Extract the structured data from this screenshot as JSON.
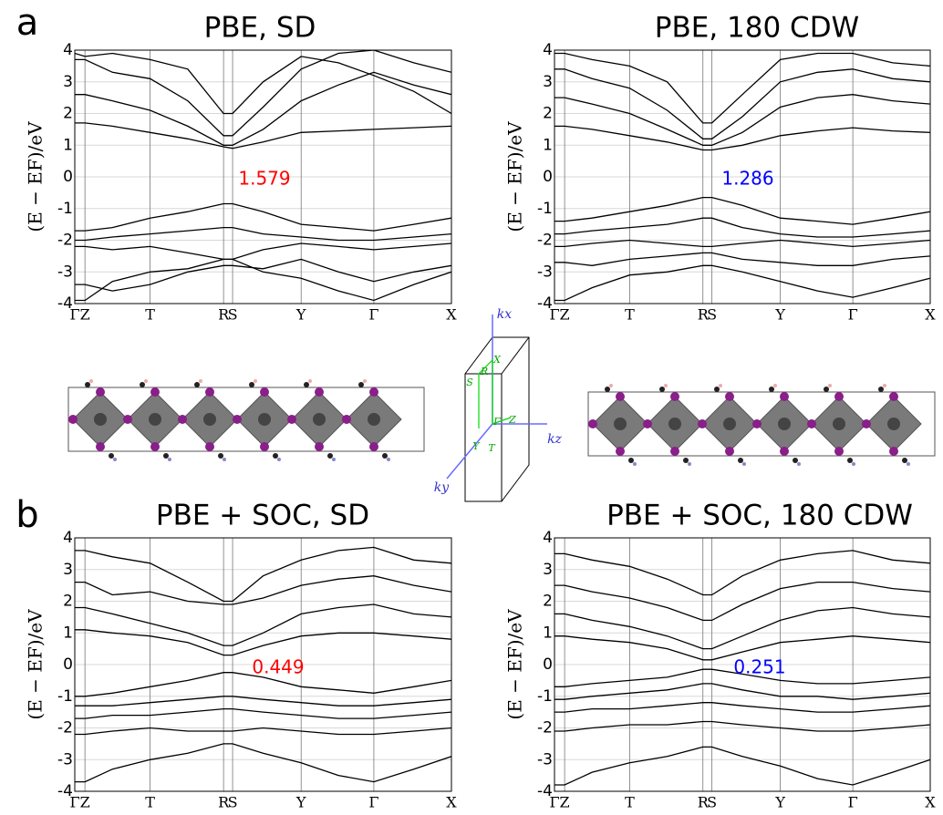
{
  "chart_data": [
    {
      "type": "line",
      "panel_label": "a",
      "title": "PBE, SD",
      "ylabel": "(E − EF)/eV",
      "color": "#000000",
      "grid": true,
      "annotation": {
        "text": "1.579",
        "color": "#ff0000"
      },
      "x": [
        0,
        0.027,
        0.1,
        0.2,
        0.3,
        0.395,
        0.419,
        0.5,
        0.601,
        0.7,
        0.794,
        0.9,
        1
      ],
      "xlim": [
        0,
        1
      ],
      "xticks": [
        {
          "value": 0,
          "label": "Γ"
        },
        {
          "value": 0.027,
          "label": "Z"
        },
        {
          "value": 0.2,
          "label": "T"
        },
        {
          "value": 0.395,
          "label": "R"
        },
        {
          "value": 0.419,
          "label": "S"
        },
        {
          "value": 0.601,
          "label": "Y"
        },
        {
          "value": 0.794,
          "label": "Γ"
        },
        {
          "value": 1,
          "label": "X"
        }
      ],
      "ylim": [
        -4,
        4
      ],
      "yticks": [
        -4,
        -3,
        -2,
        -1,
        0,
        1,
        2,
        3,
        4
      ],
      "series": [
        {
          "values": [
            1.7,
            1.7,
            1.6,
            1.4,
            1.2,
            0.95,
            0.9,
            1.1,
            1.4,
            1.45,
            1.5,
            1.55,
            1.6
          ]
        },
        {
          "values": [
            2.6,
            2.6,
            2.4,
            2.1,
            1.6,
            1.0,
            1.0,
            1.5,
            2.4,
            2.9,
            3.3,
            2.9,
            2.6
          ]
        },
        {
          "values": [
            3.7,
            3.7,
            3.3,
            3.1,
            2.4,
            1.3,
            1.3,
            2.2,
            3.4,
            3.9,
            4.0,
            3.6,
            3.3
          ]
        },
        {
          "values": [
            3.9,
            3.8,
            3.9,
            3.7,
            3.4,
            2.0,
            2.0,
            3.0,
            3.8,
            3.6,
            3.2,
            2.7,
            2.0
          ]
        },
        {
          "values": [
            -1.7,
            -1.7,
            -1.6,
            -1.3,
            -1.1,
            -0.85,
            -0.85,
            -1.1,
            -1.5,
            -1.6,
            -1.7,
            -1.5,
            -1.3
          ]
        },
        {
          "values": [
            -2.0,
            -2.0,
            -1.9,
            -1.8,
            -1.7,
            -1.6,
            -1.6,
            -1.8,
            -1.9,
            -2.0,
            -2.0,
            -1.9,
            -1.8
          ]
        },
        {
          "values": [
            -2.2,
            -2.2,
            -2.3,
            -2.2,
            -2.4,
            -2.6,
            -2.6,
            -2.3,
            -2.1,
            -2.2,
            -2.3,
            -2.2,
            -2.1
          ]
        },
        {
          "values": [
            -3.4,
            -3.4,
            -3.6,
            -3.4,
            -3.0,
            -2.8,
            -2.8,
            -2.9,
            -2.6,
            -3.0,
            -3.3,
            -3.0,
            -2.8
          ]
        },
        {
          "values": [
            -3.9,
            -3.9,
            -3.3,
            -3.0,
            -2.9,
            -2.6,
            -2.6,
            -3.0,
            -3.2,
            -3.6,
            -3.9,
            -3.4,
            -3.0
          ]
        }
      ]
    },
    {
      "type": "line",
      "title": "PBE, 180 CDW",
      "ylabel": "(E − EF)/eV",
      "color": "#000000",
      "grid": true,
      "annotation": {
        "text": "1.286",
        "color": "#0000ff"
      },
      "x": [
        0,
        0.027,
        0.1,
        0.2,
        0.3,
        0.395,
        0.419,
        0.5,
        0.601,
        0.7,
        0.794,
        0.9,
        1
      ],
      "xlim": [
        0,
        1
      ],
      "xticks": [
        {
          "value": 0,
          "label": "Γ"
        },
        {
          "value": 0.027,
          "label": "Z"
        },
        {
          "value": 0.2,
          "label": "T"
        },
        {
          "value": 0.395,
          "label": "R"
        },
        {
          "value": 0.419,
          "label": "S"
        },
        {
          "value": 0.601,
          "label": "Y"
        },
        {
          "value": 0.794,
          "label": "Γ"
        },
        {
          "value": 1,
          "label": "X"
        }
      ],
      "ylim": [
        -4,
        4
      ],
      "yticks": [
        -4,
        -3,
        -2,
        -1,
        0,
        1,
        2,
        3,
        4
      ],
      "series": [
        {
          "values": [
            1.6,
            1.6,
            1.5,
            1.3,
            1.1,
            0.85,
            0.85,
            1.0,
            1.3,
            1.45,
            1.55,
            1.45,
            1.4
          ]
        },
        {
          "values": [
            2.5,
            2.5,
            2.3,
            2.0,
            1.5,
            1.0,
            1.0,
            1.4,
            2.2,
            2.5,
            2.6,
            2.4,
            2.3
          ]
        },
        {
          "values": [
            3.4,
            3.4,
            3.1,
            2.8,
            2.1,
            1.2,
            1.2,
            1.9,
            3.0,
            3.3,
            3.4,
            3.1,
            3.0
          ]
        },
        {
          "values": [
            3.9,
            3.9,
            3.7,
            3.5,
            3.0,
            1.7,
            1.7,
            2.6,
            3.7,
            3.9,
            3.9,
            3.6,
            3.5
          ]
        },
        {
          "values": [
            -1.4,
            -1.4,
            -1.3,
            -1.1,
            -0.9,
            -0.65,
            -0.65,
            -0.9,
            -1.3,
            -1.4,
            -1.5,
            -1.3,
            -1.1
          ]
        },
        {
          "values": [
            -1.8,
            -1.8,
            -1.7,
            -1.6,
            -1.5,
            -1.3,
            -1.3,
            -1.6,
            -1.8,
            -1.9,
            -1.9,
            -1.8,
            -1.7
          ]
        },
        {
          "values": [
            -2.2,
            -2.2,
            -2.1,
            -2.0,
            -2.1,
            -2.2,
            -2.2,
            -2.1,
            -2.0,
            -2.1,
            -2.2,
            -2.1,
            -2.0
          ]
        },
        {
          "values": [
            -2.7,
            -2.7,
            -2.8,
            -2.6,
            -2.5,
            -2.4,
            -2.4,
            -2.6,
            -2.7,
            -2.8,
            -2.8,
            -2.6,
            -2.5
          ]
        },
        {
          "values": [
            -3.9,
            -3.9,
            -3.5,
            -3.1,
            -3.0,
            -2.8,
            -2.8,
            -3.0,
            -3.3,
            -3.6,
            -3.8,
            -3.5,
            -3.2
          ]
        }
      ]
    },
    {
      "type": "line",
      "panel_label": "b",
      "title": "PBE + SOC, SD",
      "ylabel": "(E − EF)/eV",
      "color": "#000000",
      "grid": true,
      "annotation": {
        "text": "0.449",
        "color": "#ff0000"
      },
      "x": [
        0,
        0.027,
        0.1,
        0.2,
        0.3,
        0.395,
        0.419,
        0.5,
        0.601,
        0.7,
        0.794,
        0.9,
        1
      ],
      "xlim": [
        0,
        1
      ],
      "xticks": [
        {
          "value": 0,
          "label": "Γ"
        },
        {
          "value": 0.027,
          "label": "Z"
        },
        {
          "value": 0.2,
          "label": "T"
        },
        {
          "value": 0.395,
          "label": "R"
        },
        {
          "value": 0.419,
          "label": "S"
        },
        {
          "value": 0.601,
          "label": "Y"
        },
        {
          "value": 0.794,
          "label": "Γ"
        },
        {
          "value": 1,
          "label": "X"
        }
      ],
      "ylim": [
        -4,
        4
      ],
      "yticks": [
        -4,
        -3,
        -2,
        -1,
        0,
        1,
        2,
        3,
        4
      ],
      "series": [
        {
          "values": [
            1.1,
            1.1,
            1.0,
            0.9,
            0.7,
            0.3,
            0.3,
            0.6,
            0.9,
            1.0,
            1.0,
            0.9,
            0.8
          ]
        },
        {
          "values": [
            1.8,
            1.8,
            1.6,
            1.3,
            1.0,
            0.6,
            0.6,
            1.0,
            1.6,
            1.8,
            1.9,
            1.6,
            1.5
          ]
        },
        {
          "values": [
            2.6,
            2.6,
            2.2,
            2.3,
            2.0,
            1.9,
            1.9,
            2.1,
            2.5,
            2.7,
            2.8,
            2.5,
            2.3
          ]
        },
        {
          "values": [
            3.6,
            3.6,
            3.4,
            3.2,
            2.6,
            2.0,
            2.0,
            2.8,
            3.3,
            3.6,
            3.7,
            3.3,
            3.2
          ]
        },
        {
          "values": [
            -1.0,
            -1.0,
            -0.9,
            -0.7,
            -0.5,
            -0.25,
            -0.25,
            -0.4,
            -0.7,
            -0.8,
            -0.9,
            -0.7,
            -0.5
          ]
        },
        {
          "values": [
            -1.3,
            -1.3,
            -1.3,
            -1.2,
            -1.1,
            -1.0,
            -1.0,
            -1.1,
            -1.2,
            -1.3,
            -1.3,
            -1.2,
            -1.1
          ]
        },
        {
          "values": [
            -1.7,
            -1.7,
            -1.6,
            -1.6,
            -1.5,
            -1.4,
            -1.4,
            -1.5,
            -1.6,
            -1.7,
            -1.7,
            -1.6,
            -1.5
          ]
        },
        {
          "values": [
            -2.2,
            -2.2,
            -2.1,
            -2.0,
            -2.1,
            -2.1,
            -2.1,
            -2.0,
            -2.1,
            -2.2,
            -2.2,
            -2.1,
            -2.0
          ]
        },
        {
          "values": [
            -3.7,
            -3.7,
            -3.3,
            -3.0,
            -2.8,
            -2.5,
            -2.5,
            -2.8,
            -3.1,
            -3.5,
            -3.7,
            -3.3,
            -2.9
          ]
        }
      ]
    },
    {
      "type": "line",
      "title": "PBE + SOC, 180 CDW",
      "ylabel": "(E − EF)/eV",
      "color": "#000000",
      "grid": true,
      "annotation": {
        "text": "0.251",
        "color": "#0000ff"
      },
      "x": [
        0,
        0.027,
        0.1,
        0.2,
        0.3,
        0.395,
        0.419,
        0.5,
        0.601,
        0.7,
        0.794,
        0.9,
        1
      ],
      "xlim": [
        0,
        1
      ],
      "xticks": [
        {
          "value": 0,
          "label": "Γ"
        },
        {
          "value": 0.027,
          "label": "Z"
        },
        {
          "value": 0.2,
          "label": "T"
        },
        {
          "value": 0.395,
          "label": "R"
        },
        {
          "value": 0.419,
          "label": "S"
        },
        {
          "value": 0.601,
          "label": "Y"
        },
        {
          "value": 0.794,
          "label": "Γ"
        },
        {
          "value": 1,
          "label": "X"
        }
      ],
      "ylim": [
        -4,
        4
      ],
      "yticks": [
        -4,
        -3,
        -2,
        -1,
        0,
        1,
        2,
        3,
        4
      ],
      "series": [
        {
          "values": [
            0.9,
            0.9,
            0.8,
            0.7,
            0.5,
            0.15,
            0.15,
            0.4,
            0.7,
            0.8,
            0.9,
            0.8,
            0.7
          ]
        },
        {
          "values": [
            1.6,
            1.6,
            1.4,
            1.2,
            0.9,
            0.5,
            0.5,
            0.9,
            1.4,
            1.7,
            1.8,
            1.6,
            1.5
          ]
        },
        {
          "values": [
            2.5,
            2.5,
            2.3,
            2.1,
            1.8,
            1.4,
            1.4,
            1.9,
            2.4,
            2.6,
            2.6,
            2.4,
            2.3
          ]
        },
        {
          "values": [
            3.5,
            3.5,
            3.3,
            3.1,
            2.7,
            2.2,
            2.2,
            2.8,
            3.3,
            3.5,
            3.6,
            3.3,
            3.2
          ]
        },
        {
          "values": [
            -0.7,
            -0.7,
            -0.6,
            -0.5,
            -0.4,
            -0.15,
            -0.15,
            -0.3,
            -0.5,
            -0.6,
            -0.6,
            -0.5,
            -0.4
          ]
        },
        {
          "values": [
            -1.1,
            -1.1,
            -1.0,
            -0.9,
            -0.8,
            -0.6,
            -0.6,
            -0.8,
            -1.0,
            -1.0,
            -1.1,
            -1.0,
            -0.9
          ]
        },
        {
          "values": [
            -1.5,
            -1.5,
            -1.4,
            -1.4,
            -1.3,
            -1.2,
            -1.2,
            -1.3,
            -1.4,
            -1.5,
            -1.5,
            -1.4,
            -1.3
          ]
        },
        {
          "values": [
            -2.1,
            -2.1,
            -2.0,
            -1.9,
            -1.9,
            -1.8,
            -1.8,
            -1.9,
            -2.0,
            -2.1,
            -2.1,
            -2.0,
            -1.9
          ]
        },
        {
          "values": [
            -3.8,
            -3.8,
            -3.4,
            -3.1,
            -2.9,
            -2.6,
            -2.6,
            -2.9,
            -3.2,
            -3.6,
            -3.8,
            -3.4,
            -3.0
          ]
        }
      ]
    }
  ],
  "diagram": {
    "axis_labels": [
      "kx",
      "ky",
      "kz"
    ],
    "points": [
      "Γ",
      "X",
      "S",
      "R",
      "Y",
      "Z",
      "T"
    ]
  }
}
